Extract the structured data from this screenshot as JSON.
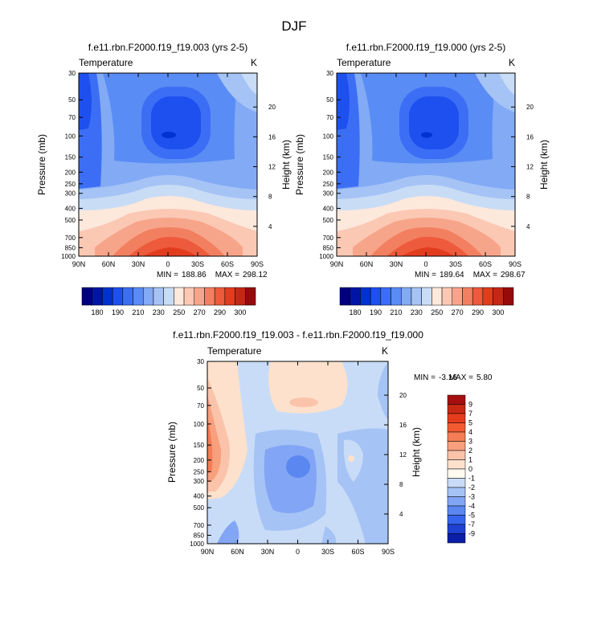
{
  "title": "DJF",
  "chart_data": [
    {
      "type": "contour",
      "title": "f.e11.rbn.F2000.f19_f19.003 (yrs 2-5)",
      "left_label": "Temperature",
      "right_label": "K",
      "ylabel": "Pressure (mb)",
      "ylabel_right": "Height (km)",
      "x_ticks": [
        "90N",
        "60N",
        "30N",
        "0",
        "30S",
        "60S",
        "90S"
      ],
      "y_ticks": [
        "30",
        "50",
        "70",
        "100",
        "150",
        "200",
        "250",
        "300",
        "400",
        "500",
        "700",
        "850",
        "1000"
      ],
      "height_ticks": [
        "20",
        "16",
        "12",
        "8",
        "4"
      ],
      "min_label": "MIN =",
      "min_value": "188.86",
      "max_label": "MAX =",
      "max_value": "298.12",
      "colorbar": {
        "labels": [
          "180",
          "190",
          "210",
          "230",
          "250",
          "270",
          "290",
          "300"
        ],
        "colors": [
          "#00007f",
          "#0015a8",
          "#0032d0",
          "#1e50f0",
          "#3c6ef5",
          "#5a8cf5",
          "#82aaf5",
          "#a5c3f5",
          "#c8dcf5",
          "#fde8dc",
          "#fbc8b4",
          "#f7a58a",
          "#f28060",
          "#ee5a3c",
          "#e23c1e",
          "#c42814",
          "#960a0a"
        ]
      }
    },
    {
      "type": "contour",
      "title": "f.e11.rbn.F2000.f19_f19.000 (yrs 2-5)",
      "left_label": "Temperature",
      "right_label": "K",
      "ylabel": "Pressure (mb)",
      "ylabel_right": "Height (km)",
      "x_ticks": [
        "90N",
        "60N",
        "30N",
        "0",
        "30S",
        "60S",
        "90S"
      ],
      "y_ticks": [
        "30",
        "50",
        "70",
        "100",
        "150",
        "200",
        "250",
        "300",
        "400",
        "500",
        "700",
        "850",
        "1000"
      ],
      "height_ticks": [
        "20",
        "16",
        "12",
        "8",
        "4"
      ],
      "min_label": "MIN =",
      "min_value": "189.64",
      "max_label": "MAX =",
      "max_value": "298.67",
      "colorbar": {
        "labels": [
          "180",
          "190",
          "210",
          "230",
          "250",
          "270",
          "290",
          "300"
        ],
        "colors": [
          "#00007f",
          "#0015a8",
          "#0032d0",
          "#1e50f0",
          "#3c6ef5",
          "#5a8cf5",
          "#82aaf5",
          "#a5c3f5",
          "#c8dcf5",
          "#fde8dc",
          "#fbc8b4",
          "#f7a58a",
          "#f28060",
          "#ee5a3c",
          "#e23c1e",
          "#c42814",
          "#960a0a"
        ]
      }
    },
    {
      "type": "contour",
      "title": "f.e11.rbn.F2000.f19_f19.003 - f.e11.rbn.F2000.f19_f19.000",
      "left_label": "Temperature",
      "right_label": "K",
      "ylabel": "Pressure (mb)",
      "ylabel_right": "Height (km)",
      "x_ticks": [
        "90N",
        "60N",
        "30N",
        "0",
        "30S",
        "60S",
        "90S"
      ],
      "y_ticks": [
        "30",
        "50",
        "70",
        "100",
        "150",
        "200",
        "250",
        "300",
        "400",
        "500",
        "700",
        "850",
        "1000"
      ],
      "height_ticks": [
        "20",
        "16",
        "12",
        "8",
        "4"
      ],
      "min_label": "MIN =",
      "min_value": "-3.16",
      "max_label": "MAX =",
      "max_value": "5.80",
      "colorbar": {
        "labels": [
          "9",
          "7",
          "5",
          "4",
          "3",
          "2",
          "1",
          "0",
          "-1",
          "-2",
          "-3",
          "-4",
          "-5",
          "-7",
          "-9"
        ],
        "colors": [
          "#a50f0f",
          "#c82814",
          "#e63c1e",
          "#f25a32",
          "#f57d55",
          "#f7a07d",
          "#fac3aa",
          "#fde1cd",
          "#fffaf0",
          "#c8dcf8",
          "#a5c3f5",
          "#82a5f5",
          "#5a87f0",
          "#3764ef",
          "#1e41d2",
          "#0a1ea8",
          "#00007f"
        ]
      }
    }
  ]
}
